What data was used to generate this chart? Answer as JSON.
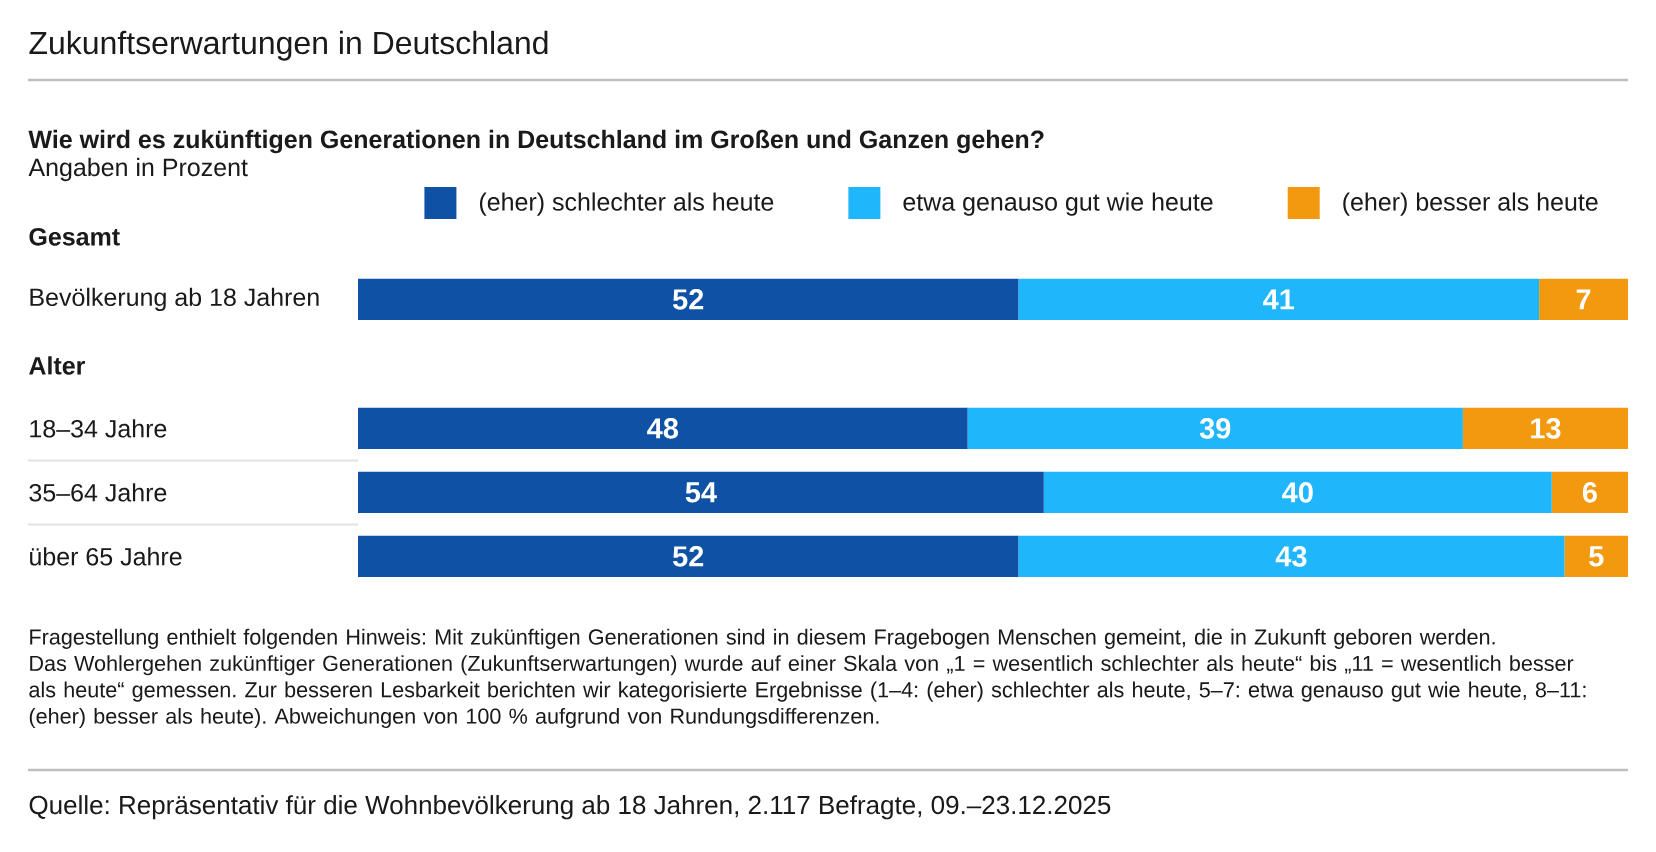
{
  "chart_data": [
    {
      "type": "bar",
      "orientation": "horizontal",
      "stacked": true,
      "title": "Zukunftserwartungen in Deutschland",
      "subtitle": "Wie wird es zukünftigen Generationen in Deutschland im Großen und Ganzen gehen?",
      "annotations": [
        "Angaben in Prozent"
      ],
      "ylabel": "Gesamt",
      "categories": [
        "Bevölkerung ab 18 Jahren"
      ],
      "series": [
        {
          "name": "(eher) schlechter als heute",
          "color": "#0f52a5",
          "values": [
            52
          ]
        },
        {
          "name": "etwa genauso gut wie heute",
          "color": "#20b6fc",
          "values": [
            41
          ]
        },
        {
          "name": "(eher) besser als heute",
          "color": "#f2990f",
          "values": [
            7
          ]
        }
      ],
      "tick_labels": "y",
      "data_labels": true,
      "legend": "top"
    },
    {
      "type": "bar",
      "orientation": "horizontal",
      "stacked": true,
      "ylabel": "Alter",
      "categories": [
        "18–34 Jahre",
        "35–64 Jahre",
        "über 65 Jahre"
      ],
      "series": [
        {
          "color": "#0f52a5",
          "values": [
            48,
            54,
            52
          ]
        },
        {
          "color": "#20b6fc",
          "values": [
            39,
            40,
            43
          ]
        },
        {
          "color": "#f2990f",
          "values": [
            13,
            6,
            5
          ]
        }
      ],
      "tick_labels": "y",
      "data_labels": true,
      "annotations": [
        "Fragestellung enthielt folgenden Hinweis: Mit zukünftigen Generationen sind in diesem Fragebogen Menschen gemeint, die in Zukunft geboren werden.",
        "Das Wohlergehen zukünftiger Generationen (Zukunftserwartungen) wurde auf einer Skala von „1 = wesentlich schlechter als heute“ bis „11 = wesentlich besser als heute“ gemessen. Zur besseren Lesbarkeit berichten wir kategorisierte Ergebnisse (1–4: (eher) schlechter als heute, 5–7: etwa genauso gut wie heute, 8–11: (eher) besser als heute). Abweichungen von 100 % aufgrund von Rundungsdifferenzen.",
        "Quelle: Repräsentativ für die Wohnbevölkerung ab 18 Jahren, 2.117 Befragte, 09.–23.12.2025"
      ]
    }
  ]
}
